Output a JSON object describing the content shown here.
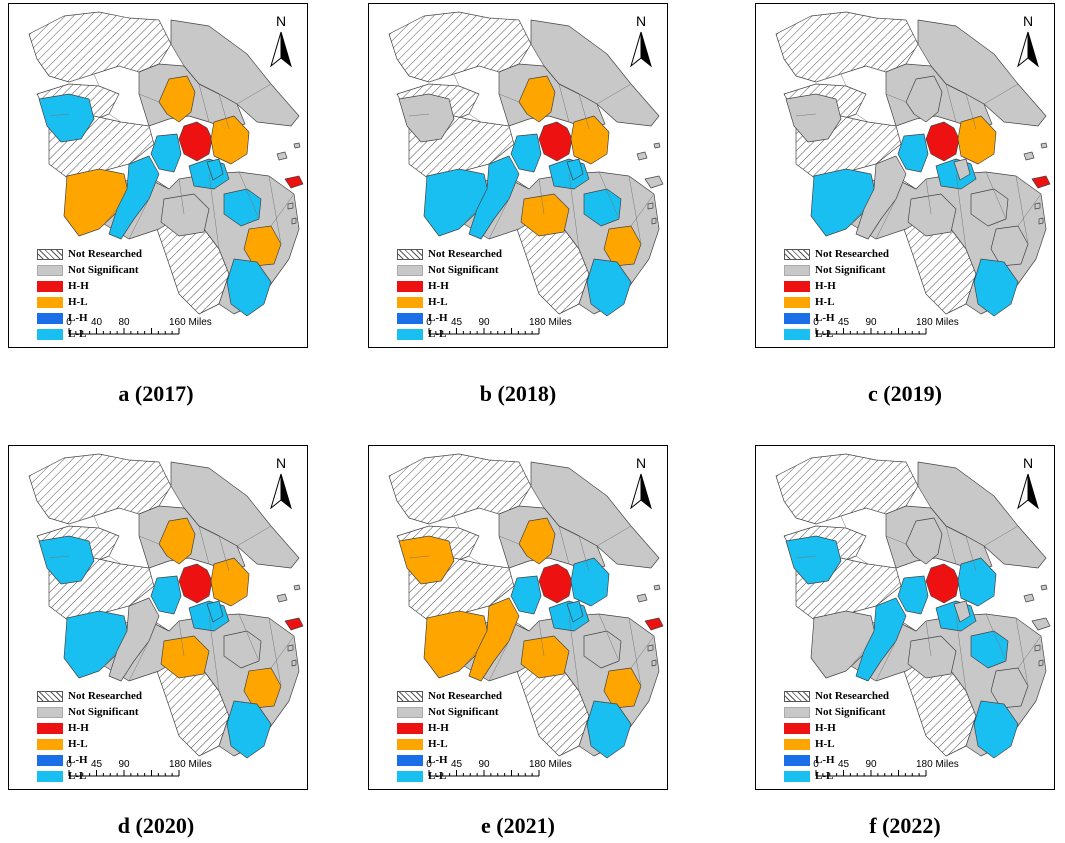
{
  "colors": {
    "not_researched": "#ffffff",
    "not_significant": "#c8c8c8",
    "HH": "#ee1111",
    "HL": "#ffa500",
    "LH": "#1a6fe8",
    "LL": "#18bff0",
    "border": "#444444"
  },
  "legend": {
    "items": [
      {
        "key": "not_researched",
        "label": "Not Researched"
      },
      {
        "key": "not_significant",
        "label": "Not Significant"
      },
      {
        "key": "HH",
        "label": "H-H"
      },
      {
        "key": "HL",
        "label": "H-L"
      },
      {
        "key": "LH",
        "label": "L-H"
      },
      {
        "key": "LL",
        "label": "L-L"
      }
    ]
  },
  "north_label": "N",
  "panels": [
    {
      "id": "a",
      "caption": "a (2017)",
      "scale": {
        "ticks": [
          "0",
          "40",
          "80",
          "160 Miles"
        ]
      },
      "regions": {
        "central": "HH",
        "ne_island": "HH",
        "north_central": "HL",
        "west_center": "LL",
        "nw_left": "LL",
        "sw": "HL",
        "s_corridor": "LL",
        "east_near": "HL",
        "coast_mid": "LL",
        "se_upper": "LL",
        "se_mid": "HL",
        "se_lower": "LL",
        "central_e": "LL",
        "south_center": "not_significant"
      }
    },
    {
      "id": "b",
      "caption": "b (2018)",
      "scale": {
        "ticks": [
          "0",
          "45",
          "90",
          "180 Miles"
        ]
      },
      "regions": {
        "central": "HH",
        "ne_island": "not_significant",
        "north_central": "HL",
        "west_center": "LL",
        "nw_left": "not_significant",
        "sw": "LL",
        "s_corridor": "LL",
        "east_near": "HL",
        "coast_mid": "LL",
        "se_upper": "LL",
        "se_mid": "HL",
        "se_lower": "LL",
        "central_e": "LL",
        "south_center": "HL"
      }
    },
    {
      "id": "c",
      "caption": "c (2019)",
      "scale": {
        "ticks": [
          "0",
          "45",
          "90",
          "180 Miles"
        ]
      },
      "regions": {
        "central": "HH",
        "ne_island": "HH",
        "north_central": "not_significant",
        "west_center": "LL",
        "nw_left": "not_significant",
        "sw": "LL",
        "s_corridor": "not_significant",
        "east_near": "HL",
        "coast_mid": "LL",
        "se_upper": "not_significant",
        "se_mid": "not_significant",
        "se_lower": "LL",
        "central_e": "not_significant",
        "south_center": "not_significant"
      }
    },
    {
      "id": "d",
      "caption": "d (2020)",
      "scale": {
        "ticks": [
          "0",
          "45",
          "90",
          "180 Miles"
        ]
      },
      "regions": {
        "central": "HH",
        "ne_island": "HH",
        "north_central": "HL",
        "west_center": "LL",
        "nw_left": "LL",
        "sw": "LL",
        "s_corridor": "not_significant",
        "east_near": "HL",
        "coast_mid": "LL",
        "se_upper": "not_significant",
        "se_mid": "HL",
        "se_lower": "LL",
        "central_e": "LL",
        "south_center": "HL"
      }
    },
    {
      "id": "e",
      "caption": "e (2021)",
      "scale": {
        "ticks": [
          "0",
          "45",
          "90",
          "180 Miles"
        ]
      },
      "regions": {
        "central": "HH",
        "ne_island": "HH",
        "north_central": "HL",
        "west_center": "LL",
        "nw_left": "HL",
        "sw": "HL",
        "s_corridor": "HL",
        "east_near": "LL",
        "coast_mid": "LL",
        "se_upper": "not_significant",
        "se_mid": "HL",
        "se_lower": "LL",
        "central_e": "LL",
        "south_center": "HL"
      }
    },
    {
      "id": "f",
      "caption": "f (2022)",
      "scale": {
        "ticks": [
          "0",
          "45",
          "90",
          "180 Miles"
        ]
      },
      "regions": {
        "central": "HH",
        "ne_island": "not_significant",
        "north_central": "not_significant",
        "west_center": "LL",
        "nw_left": "LL",
        "sw": "not_significant",
        "s_corridor": "LL",
        "east_near": "LL",
        "coast_mid": "LL",
        "se_upper": "LL",
        "se_mid": "not_significant",
        "se_lower": "LL",
        "central_e": "not_significant",
        "south_center": "not_significant"
      }
    }
  ]
}
